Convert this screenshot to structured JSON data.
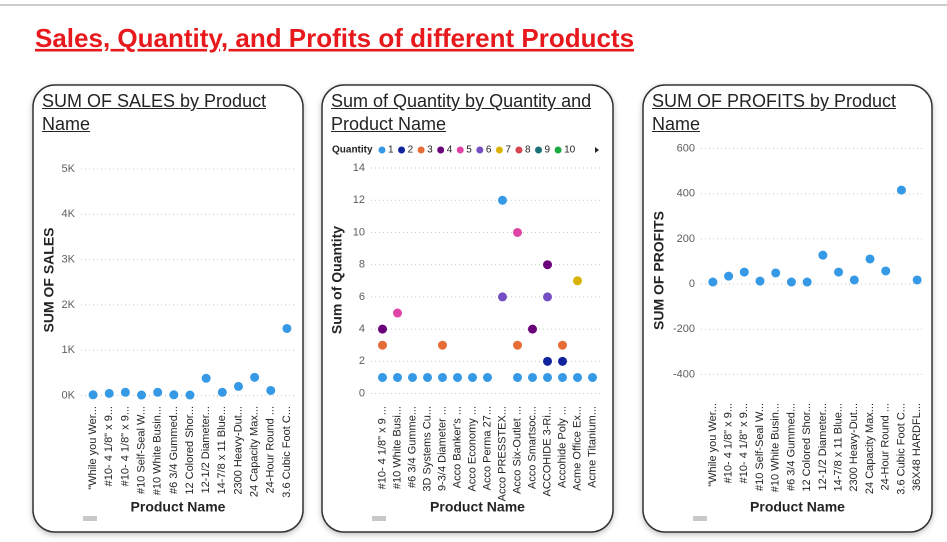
{
  "header": {
    "title": "Sales, Quantity, and Profits of different Products"
  },
  "chart_data": [
    {
      "type": "scatter",
      "title": "SUM OF SALES by Product Name",
      "x_label": "Product Name",
      "y_label": "SUM OF SALES",
      "categories": [
        "\"While you Wer...",
        "#10- 4 1/8\" x 9...",
        "#10- 4 1/8\" x 9...",
        "#10 Self-Seal W...",
        "#10 White Busin...",
        "#6 3/4 Gummed...",
        "12 Colored Shor...",
        "12-1/2 Diameter...",
        "14-7/8 x 11 Blue...",
        "2300 Heavy-Dut...",
        "24 Capacity Max...",
        "24-Hour Round ...",
        "3.6 Cubic Foot C..."
      ],
      "values": [
        15,
        45,
        70,
        10,
        70,
        15,
        10,
        380,
        70,
        200,
        400,
        110,
        1480
      ],
      "color": "#3599e6",
      "ylim": [
        -100,
        5200
      ],
      "yticks": [
        {
          "value": 0,
          "label": "0K"
        },
        {
          "value": 1000,
          "label": "1K"
        },
        {
          "value": 2000,
          "label": "2K"
        },
        {
          "value": 3000,
          "label": "3K"
        },
        {
          "value": 4000,
          "label": "4K"
        },
        {
          "value": 5000,
          "label": "5K"
        }
      ],
      "grid": true
    },
    {
      "type": "scatter",
      "title": "Sum of Quantity by Quantity and Product Name",
      "x_label": "Product Name",
      "y_label": "Sum of Quantity",
      "legend_title": "Quantity",
      "categories": [
        "#10- 4 1/8\" x 9 ...",
        "#10 White Busi...",
        "#6 3/4 Gumme...",
        "3D Systems Cu...",
        "9-3/4 Diameter ...",
        "Acco Banker's ...",
        "Acco Economy ...",
        "Acco Perma 27...",
        "Acco PRESSTEX...",
        "Acco Six-Outlet ...",
        "Acco Smartsoc...",
        "ACCOHIDE 3-Ri...",
        "Accohide Poly ...",
        "Acme Office Ex...",
        "Acme Titanium..."
      ],
      "series": [
        {
          "name": "1",
          "color": "#3599e6",
          "values": [
            1,
            1,
            1,
            1,
            1,
            1,
            1,
            1,
            12,
            1,
            1,
            1,
            1,
            1,
            1
          ]
        },
        {
          "name": "2",
          "color": "#12239e",
          "values": [
            null,
            null,
            null,
            null,
            null,
            null,
            null,
            null,
            null,
            null,
            null,
            2,
            2,
            null,
            null
          ]
        },
        {
          "name": "3",
          "color": "#e66c37",
          "values": [
            3,
            null,
            null,
            null,
            3,
            null,
            null,
            null,
            null,
            3,
            null,
            null,
            3,
            null,
            null
          ]
        },
        {
          "name": "4",
          "color": "#6b007b",
          "values": [
            4,
            null,
            null,
            null,
            null,
            null,
            null,
            null,
            null,
            null,
            4,
            8,
            null,
            null,
            null
          ]
        },
        {
          "name": "5",
          "color": "#e044a7",
          "values": [
            null,
            5,
            null,
            null,
            null,
            null,
            null,
            null,
            null,
            10,
            null,
            null,
            null,
            null,
            null
          ]
        },
        {
          "name": "6",
          "color": "#744ec2",
          "values": [
            null,
            null,
            null,
            null,
            null,
            null,
            null,
            null,
            6,
            null,
            null,
            6,
            null,
            null,
            null
          ]
        },
        {
          "name": "7",
          "color": "#d9b300",
          "values": [
            null,
            null,
            null,
            null,
            null,
            null,
            null,
            null,
            null,
            null,
            null,
            null,
            null,
            7,
            null
          ]
        },
        {
          "name": "8",
          "color": "#d64550",
          "values": [
            null,
            null,
            null,
            null,
            null,
            null,
            null,
            null,
            null,
            null,
            null,
            null,
            null,
            null,
            null
          ]
        },
        {
          "name": "9",
          "color": "#197278",
          "values": [
            null,
            null,
            null,
            null,
            null,
            null,
            null,
            null,
            null,
            null,
            null,
            null,
            null,
            null,
            null
          ]
        },
        {
          "name": "10",
          "color": "#1aab40",
          "values": [
            null,
            null,
            null,
            null,
            null,
            null,
            null,
            null,
            null,
            null,
            null,
            null,
            null,
            null,
            null
          ]
        }
      ],
      "ylim": [
        -0.4,
        14.5
      ],
      "yticks": [
        0,
        2,
        4,
        6,
        8,
        10,
        12,
        14
      ],
      "grid": true
    },
    {
      "type": "scatter",
      "title": "SUM OF PROFITS by Product Name",
      "x_label": "Product Name",
      "y_label": "SUM OF PROFITS",
      "categories": [
        "\"While you Wer...",
        "#10- 4 1/8\" x 9...",
        "#10- 4 1/8\" x 9...",
        "#10 Self-Seal W...",
        "#10 White Busin...",
        "#6 3/4 Gummed...",
        "12 Colored Shor...",
        "12-1/2 Diameter...",
        "14-7/8 x 11 Blue...",
        "2300 Heavy-Dut...",
        "24 Capacity Max...",
        "24-Hour Round ...",
        "3.6 Cubic Foot C...",
        "36X48 HARDFL..."
      ],
      "values": [
        9,
        35,
        53,
        13,
        49,
        9,
        9,
        128,
        53,
        18,
        111,
        58,
        416,
        18
      ],
      "color": "#3599e6",
      "ylim": [
        -500,
        620
      ],
      "yticks": [
        -400,
        -200,
        0,
        200,
        400,
        600
      ],
      "grid": true
    }
  ]
}
